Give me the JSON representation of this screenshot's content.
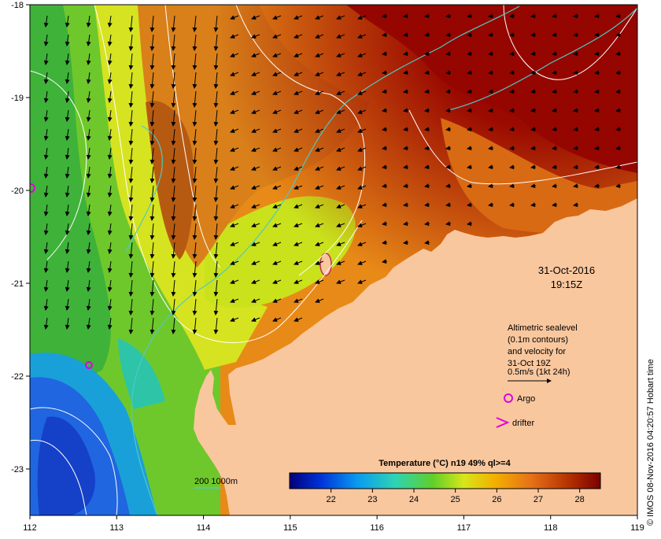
{
  "map": {
    "lon_ticks": [
      "112",
      "113",
      "114",
      "115",
      "116",
      "117",
      "118",
      "119"
    ],
    "lat_ticks": [
      "-18",
      "-19",
      "-20",
      "-21",
      "-22",
      "-23"
    ],
    "lon_range": [
      112,
      119
    ],
    "lat_range": [
      -18,
      -23.5
    ]
  },
  "timestamp": {
    "date": "31-Oct-2016",
    "time": "19:15Z"
  },
  "legend": {
    "sealevel_line1": "Altimetric sealevel",
    "sealevel_line2": "(0.1m contours)",
    "sealevel_line3": "and velocity for",
    "sealevel_line4": "31-Oct 19Z",
    "scale_label": "0.5m/s (1kt 24h)",
    "argo_label": "Argo",
    "drifter_label": "drifter"
  },
  "bathymetry": {
    "label": "200  1000m"
  },
  "colorbar": {
    "title": "Temperature (°C) n19 49% ql>=4",
    "ticks": [
      "22",
      "23",
      "24",
      "25",
      "26",
      "27",
      "28"
    ],
    "range": [
      21,
      28.5
    ]
  },
  "credit": "© IMOS 08-Nov-2016 04:20:57 Hobart time",
  "colors": {
    "land": "#f9c79e",
    "contour": "#ffffff",
    "bathy": "#4fc9c4",
    "argo": "#e000e0"
  }
}
